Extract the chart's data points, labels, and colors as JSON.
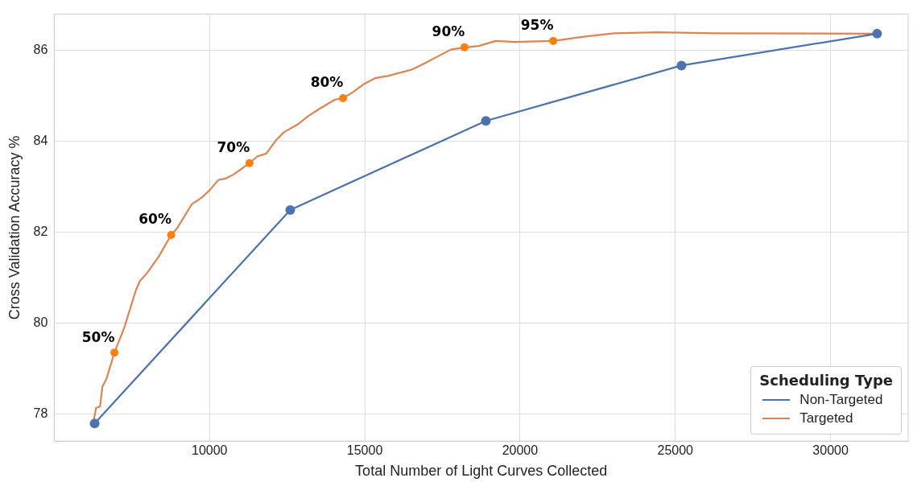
{
  "chart_data": {
    "type": "line",
    "xlabel": "Total Number of Light Curves Collected",
    "ylabel": "Cross Validation Accuracy %",
    "legend_title": "Scheduling Type",
    "legend": "bottom right",
    "grid": true,
    "xlim": [
      5000,
      32500
    ],
    "xticks": [
      10000,
      15000,
      20000,
      25000,
      30000
    ],
    "ylim": [
      77.4,
      86.8
    ],
    "yticks": [
      78,
      80,
      82,
      84,
      86
    ],
    "series": [
      {
        "name": "Non-Targeted",
        "color": "#4c72b0",
        "marker": "circle",
        "x": [
          6300,
          12600,
          18900,
          25200,
          31500
        ],
        "values": [
          77.79,
          82.49,
          84.45,
          85.67,
          86.37
        ]
      },
      {
        "name": "Targeted",
        "color": "#dd8452",
        "marker": "none",
        "x": [
          6270,
          6345,
          6474,
          6551,
          6680,
          6937,
          7246,
          7632,
          7761,
          7967,
          8353,
          8764,
          8970,
          9434,
          9743,
          10000,
          10283,
          10515,
          10772,
          11287,
          11544,
          11828,
          12136,
          12394,
          12831,
          13166,
          13552,
          14041,
          14299,
          14633,
          14994,
          15328,
          15740,
          16512,
          16873,
          17773,
          18211,
          18674,
          19215,
          19833,
          21068,
          21995,
          23024,
          24414,
          26345,
          31500
        ],
        "values": [
          77.84,
          78.13,
          78.16,
          78.6,
          78.77,
          79.35,
          79.88,
          80.73,
          80.93,
          81.08,
          81.45,
          81.94,
          82.1,
          82.62,
          82.76,
          82.92,
          83.15,
          83.18,
          83.27,
          83.52,
          83.67,
          83.73,
          84.02,
          84.2,
          84.37,
          84.55,
          84.72,
          84.92,
          84.95,
          85.09,
          85.27,
          85.39,
          85.44,
          85.58,
          85.7,
          86.02,
          86.07,
          86.1,
          86.21,
          86.19,
          86.21,
          86.3,
          86.38,
          86.4,
          86.38,
          86.37
        ]
      },
      {
        "type": "scatter",
        "color": "#ff7f0e",
        "marker": "circle",
        "x": [
          6937,
          8764,
          11287,
          14299,
          18211,
          21068
        ],
        "values": [
          79.35,
          81.94,
          83.52,
          84.95,
          86.07,
          86.21
        ]
      }
    ],
    "annotations": [
      {
        "text": "50%",
        "x": 6937,
        "y": 79.35
      },
      {
        "text": "60%",
        "x": 8764,
        "y": 81.94
      },
      {
        "text": "70%",
        "x": 11287,
        "y": 83.52
      },
      {
        "text": "80%",
        "x": 14299,
        "y": 84.95
      },
      {
        "text": "90%",
        "x": 18211,
        "y": 86.07
      },
      {
        "text": "95%",
        "x": 21068,
        "y": 86.21
      }
    ]
  }
}
